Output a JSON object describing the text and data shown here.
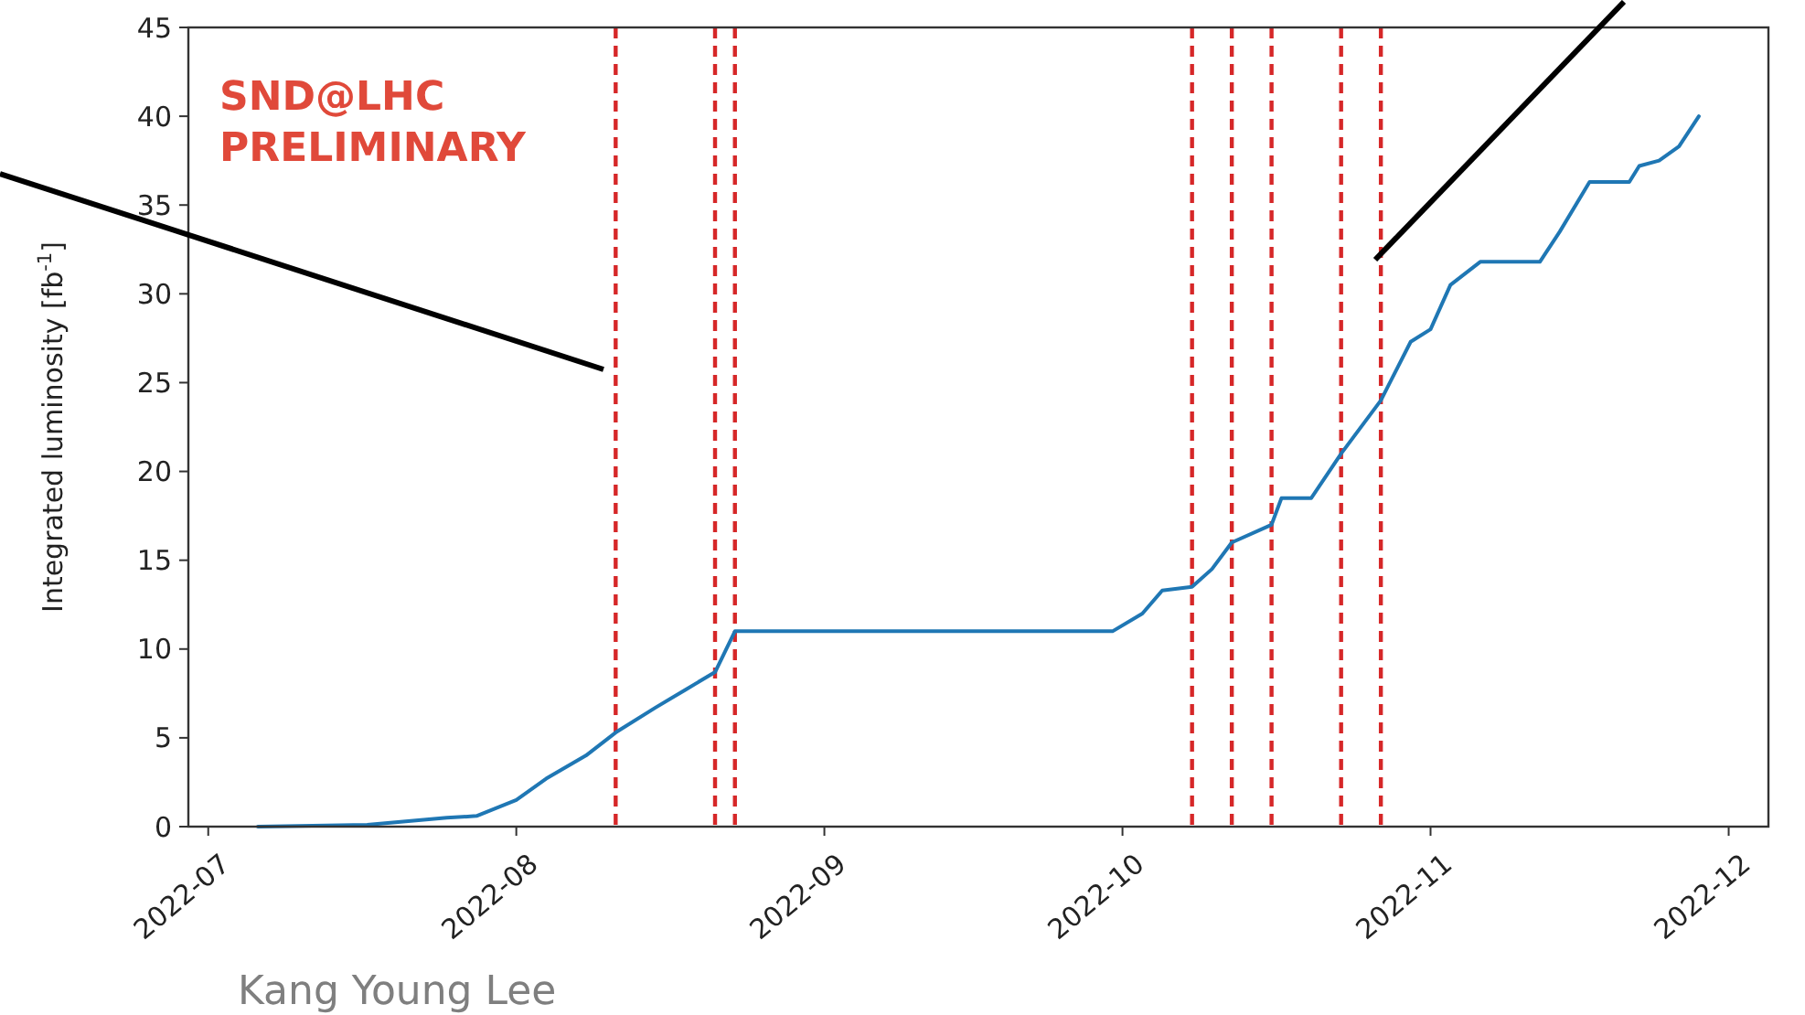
{
  "chart_data": {
    "type": "line",
    "ylabel": "Integrated luminosity [fb$^{-1}$]",
    "annotations": [
      "SND@LHC",
      "PRELIMINARY",
      "Kang Young Lee"
    ],
    "x": [
      "2022-07-06",
      "2022-07-17",
      "2022-07-25",
      "2022-07-28",
      "2022-08-01",
      "2022-08-04",
      "2022-08-08",
      "2022-08-11",
      "2022-08-15",
      "2022-08-18",
      "2022-08-21",
      "2022-08-23",
      "2022-09-30",
      "2022-10-03",
      "2022-10-05",
      "2022-10-08",
      "2022-10-10",
      "2022-10-12",
      "2022-10-16",
      "2022-10-17",
      "2022-10-20",
      "2022-10-23",
      "2022-10-27",
      "2022-10-30",
      "2022-11-01",
      "2022-11-03",
      "2022-11-06",
      "2022-11-12",
      "2022-11-14",
      "2022-11-17",
      "2022-11-21",
      "2022-11-22",
      "2022-11-24",
      "2022-11-26",
      "2022-11-28"
    ],
    "series": [
      {
        "color": "#1f77b4",
        "values": [
          0,
          0.1,
          0.5,
          0.6,
          1.5,
          2.7,
          4.0,
          5.3,
          6.7,
          7.7,
          8.7,
          11.0,
          11.0,
          12.0,
          13.3,
          13.5,
          14.5,
          16.0,
          17.0,
          18.5,
          18.5,
          21.0,
          24.0,
          27.3,
          28.0,
          30.5,
          31.8,
          31.8,
          33.5,
          36.3,
          36.3,
          37.2,
          37.5,
          38.3,
          40.0
        ]
      }
    ],
    "xlim": [
      "2022-06-29",
      "2022-12-05"
    ],
    "xticks": [
      "2022-07",
      "2022-08",
      "2022-09",
      "2022-10",
      "2022-11",
      "2022-12"
    ],
    "ylim": [
      0,
      45
    ],
    "yticks": [
      0,
      5,
      10,
      15,
      20,
      25,
      30,
      35,
      40,
      45
    ],
    "ref_lines": [
      {
        "axis": "x",
        "value": "2022-08-11",
        "color": "#d62728",
        "line_style": "dashed"
      },
      {
        "axis": "x",
        "value": "2022-08-21",
        "color": "#d62728",
        "line_style": "dashed"
      },
      {
        "axis": "x",
        "value": "2022-08-23",
        "color": "#d62728",
        "line_style": "dashed"
      },
      {
        "axis": "x",
        "value": "2022-10-08",
        "color": "#d62728",
        "line_style": "dashed"
      },
      {
        "axis": "x",
        "value": "2022-10-12",
        "color": "#d62728",
        "line_style": "dashed"
      },
      {
        "axis": "x",
        "value": "2022-10-16",
        "color": "#d62728",
        "line_style": "dashed"
      },
      {
        "axis": "x",
        "value": "2022-10-23",
        "color": "#d62728",
        "line_style": "dashed"
      },
      {
        "axis": "x",
        "value": "2022-10-27",
        "color": "#d62728",
        "line_style": "dashed"
      }
    ]
  }
}
